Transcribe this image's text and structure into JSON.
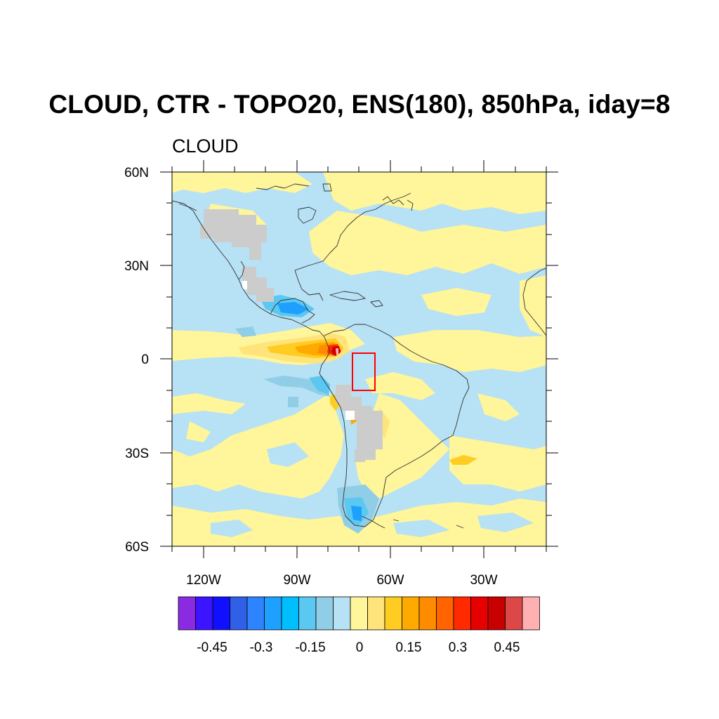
{
  "figure": {
    "title": "CLOUD, CTR - TOPO20, ENS(180), 850hPa, iday=8",
    "subtitle": "CLOUD"
  },
  "axes": {
    "lat_labels": [
      "60N",
      "30N",
      "0",
      "30S",
      "60S"
    ],
    "lon_labels": [
      "120W",
      "90W",
      "60W",
      "30W"
    ],
    "lat_range": [
      -60,
      60
    ],
    "lon_range": [
      -135,
      -15
    ]
  },
  "colorbar": {
    "labels": [
      "-0.45",
      "-0.3",
      "-0.15",
      "0",
      "0.15",
      "0.3",
      "0.45"
    ],
    "colors": [
      "#8a2be2",
      "#3c14ff",
      "#1010ff",
      "#3060e8",
      "#2e84ff",
      "#1ea0ff",
      "#00bfff",
      "#5ac8f0",
      "#90cde6",
      "#b7e1f4",
      "#fff59a",
      "#fee47a",
      "#ffcc22",
      "#ffaa00",
      "#ff8c00",
      "#ff6400",
      "#ff2a00",
      "#e60000",
      "#c80000",
      "#dc4848",
      "#ffb0b0"
    ]
  },
  "map": {
    "projection": "cylindrical-equidistant",
    "field_colors": {
      "neutral_negative": "#b7e1f4",
      "neutral_positive": "#fff59a",
      "masked": "#cccccc"
    },
    "highlight_box": {
      "lon_min": -73,
      "lon_max": -66,
      "lat_min": -10,
      "lat_max": 2,
      "color": "#ff0000"
    }
  }
}
